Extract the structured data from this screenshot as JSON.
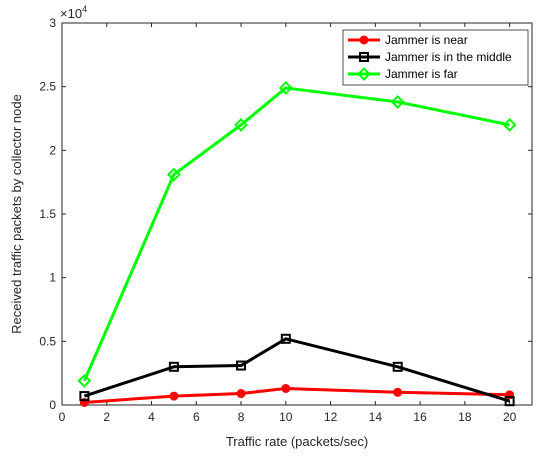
{
  "chart_data": {
    "type": "line",
    "xlabel": "Traffic rate (packets/sec)",
    "ylabel": "Received traffic packets by collector node",
    "y_exponent_label": "×10",
    "y_exponent_power": "4",
    "xlim": [
      0,
      21
    ],
    "ylim": [
      0,
      3
    ],
    "y_scale_factor": 10000,
    "x_ticks": [
      0,
      2,
      4,
      6,
      8,
      10,
      12,
      14,
      16,
      18,
      20
    ],
    "y_ticks": [
      0,
      0.5,
      1,
      1.5,
      2,
      2.5,
      3
    ],
    "x_tick_labels": [
      "0",
      "2",
      "4",
      "6",
      "8",
      "10",
      "12",
      "14",
      "16",
      "18",
      "20"
    ],
    "y_tick_labels": [
      "0",
      "0.5",
      "1",
      "1.5",
      "2",
      "2.5",
      "3"
    ],
    "grid": false,
    "legend_position": "top-right",
    "x": [
      1,
      5,
      8,
      10,
      15,
      20
    ],
    "series": [
      {
        "name": "Jammer is near",
        "color": "#ff0000",
        "marker": "circle",
        "values": [
          0.02,
          0.07,
          0.09,
          0.13,
          0.1,
          0.08
        ]
      },
      {
        "name": "Jammer is in the middle",
        "color": "#000000",
        "marker": "square",
        "values": [
          0.07,
          0.3,
          0.31,
          0.52,
          0.3,
          0.03
        ]
      },
      {
        "name": "Jammer is far",
        "color": "#00ff00",
        "marker": "diamond",
        "values": [
          0.19,
          1.81,
          2.2,
          2.49,
          2.38,
          2.2
        ]
      }
    ]
  }
}
